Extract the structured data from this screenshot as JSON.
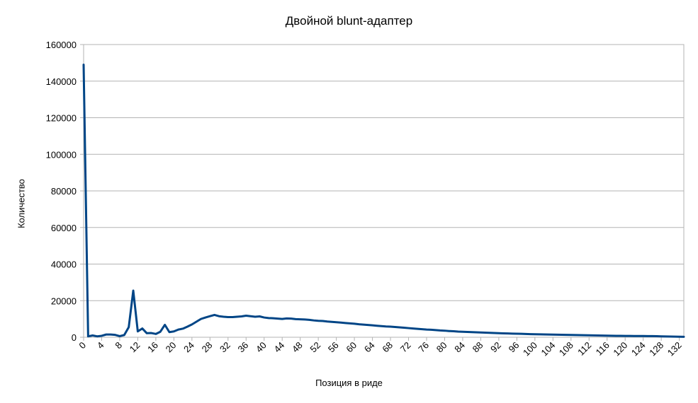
{
  "chart_data": {
    "type": "line",
    "title": "Двойной blunt-адаптер",
    "xlabel": "Позиция в риде",
    "ylabel": "Количество",
    "ylim": [
      0,
      160000
    ],
    "yticks": [
      0,
      20000,
      40000,
      60000,
      80000,
      100000,
      120000,
      140000,
      160000
    ],
    "xlim": [
      0,
      133
    ],
    "xticks": [
      0,
      4,
      8,
      12,
      16,
      20,
      24,
      28,
      32,
      36,
      40,
      44,
      48,
      52,
      56,
      60,
      64,
      68,
      72,
      76,
      80,
      84,
      88,
      92,
      96,
      100,
      104,
      108,
      112,
      116,
      120,
      124,
      128,
      132
    ],
    "grid": true,
    "legend": "none",
    "series_color": "#004586",
    "series": [
      {
        "values": [
          149000,
          500,
          1000,
          500,
          800,
          1500,
          1500,
          1300,
          600,
          1200,
          5500,
          25500,
          3200,
          4800,
          2200,
          2300,
          1800,
          3000,
          6800,
          2800,
          3200,
          4200,
          4700,
          5800,
          7000,
          8500,
          10000,
          10800,
          11500,
          12200,
          11500,
          11200,
          11000,
          11000,
          11200,
          11400,
          11800,
          11500,
          11200,
          11400,
          10800,
          10500,
          10400,
          10200,
          10000,
          10300,
          10200,
          9900,
          9800,
          9700,
          9500,
          9200,
          9000,
          8900,
          8600,
          8400,
          8200,
          8000,
          7800,
          7600,
          7400,
          7100,
          6900,
          6700,
          6500,
          6300,
          6100,
          5900,
          5800,
          5600,
          5400,
          5200,
          5000,
          4800,
          4600,
          4400,
          4200,
          4100,
          3900,
          3700,
          3600,
          3400,
          3300,
          3100,
          3000,
          2900,
          2800,
          2700,
          2600,
          2500,
          2400,
          2300,
          2200,
          2150,
          2100,
          2000,
          1950,
          1900,
          1800,
          1700,
          1650,
          1600,
          1550,
          1500,
          1450,
          1400,
          1350,
          1300,
          1250,
          1200,
          1150,
          1100,
          1050,
          1000,
          950,
          900,
          850,
          800,
          780,
          760,
          740,
          720,
          700,
          680,
          660,
          640,
          620,
          600,
          500,
          450,
          400,
          350,
          300,
          250
        ]
      }
    ]
  }
}
